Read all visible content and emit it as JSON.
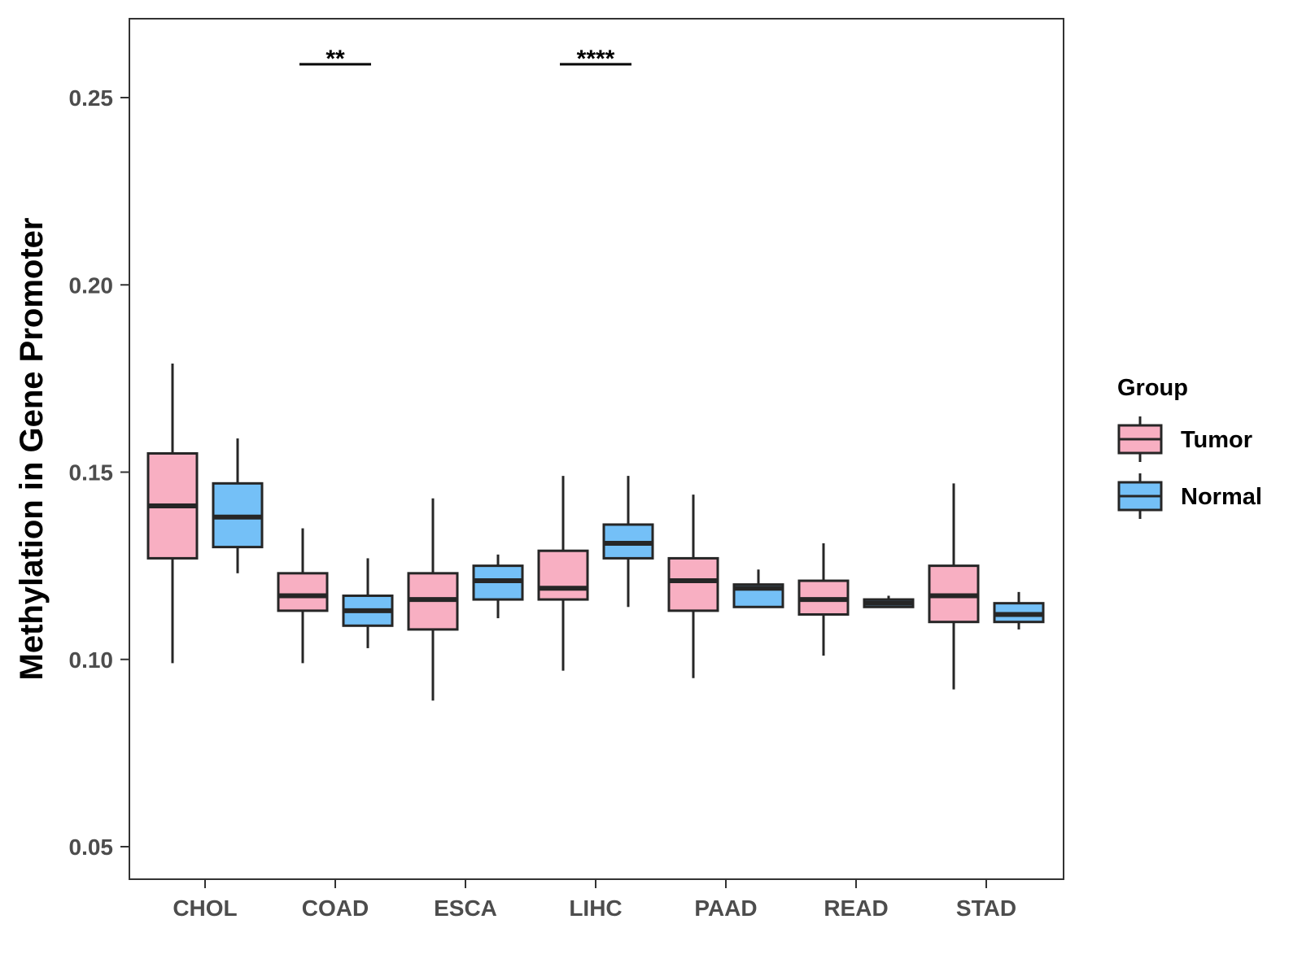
{
  "chart_data": {
    "type": "boxplot",
    "title": "",
    "xlabel": "",
    "ylabel": "Methylation in Gene Promoter",
    "ylim": [
      0.042,
      0.272
    ],
    "yticks": [
      "0.05",
      "0.10",
      "0.15",
      "0.20",
      "0.25"
    ],
    "categories": [
      "CHOL",
      "COAD",
      "ESCA",
      "LIHC",
      "PAAD",
      "READ",
      "STAD"
    ],
    "legend": {
      "title": "Group",
      "position": "right",
      "items": [
        {
          "name": "Tumor",
          "color": "#F8AFC2"
        },
        {
          "name": "Normal",
          "color": "#74C0F7"
        }
      ]
    },
    "series": [
      {
        "name": "Tumor",
        "color": "#F8AFC2",
        "boxes": [
          {
            "category": "CHOL",
            "min": 0.099,
            "q1": 0.127,
            "median": 0.141,
            "q3": 0.155,
            "max": 0.179
          },
          {
            "category": "COAD",
            "min": 0.099,
            "q1": 0.113,
            "median": 0.117,
            "q3": 0.123,
            "max": 0.135
          },
          {
            "category": "ESCA",
            "min": 0.089,
            "q1": 0.108,
            "median": 0.116,
            "q3": 0.123,
            "max": 0.143
          },
          {
            "category": "LIHC",
            "min": 0.097,
            "q1": 0.116,
            "median": 0.119,
            "q3": 0.129,
            "max": 0.149
          },
          {
            "category": "PAAD",
            "min": 0.095,
            "q1": 0.113,
            "median": 0.121,
            "q3": 0.127,
            "max": 0.144
          },
          {
            "category": "READ",
            "min": 0.101,
            "q1": 0.112,
            "median": 0.116,
            "q3": 0.121,
            "max": 0.131
          },
          {
            "category": "STAD",
            "min": 0.092,
            "q1": 0.11,
            "median": 0.117,
            "q3": 0.125,
            "max": 0.147
          }
        ]
      },
      {
        "name": "Normal",
        "color": "#74C0F7",
        "boxes": [
          {
            "category": "CHOL",
            "min": 0.123,
            "q1": 0.13,
            "median": 0.138,
            "q3": 0.147,
            "max": 0.159
          },
          {
            "category": "COAD",
            "min": 0.103,
            "q1": 0.109,
            "median": 0.113,
            "q3": 0.117,
            "max": 0.127
          },
          {
            "category": "ESCA",
            "min": 0.111,
            "q1": 0.116,
            "median": 0.121,
            "q3": 0.125,
            "max": 0.128
          },
          {
            "category": "LIHC",
            "min": 0.114,
            "q1": 0.127,
            "median": 0.131,
            "q3": 0.136,
            "max": 0.149
          },
          {
            "category": "PAAD",
            "min": 0.114,
            "q1": 0.114,
            "median": 0.119,
            "q3": 0.12,
            "max": 0.124
          },
          {
            "category": "READ",
            "min": 0.114,
            "q1": 0.114,
            "median": 0.115,
            "q3": 0.116,
            "max": 0.117
          },
          {
            "category": "STAD",
            "min": 0.108,
            "q1": 0.11,
            "median": 0.112,
            "q3": 0.115,
            "max": 0.118
          }
        ]
      }
    ],
    "annotations": [
      {
        "category": "COAD",
        "label": "**",
        "y": 0.26
      },
      {
        "category": "LIHC",
        "label": "****",
        "y": 0.26
      }
    ]
  }
}
